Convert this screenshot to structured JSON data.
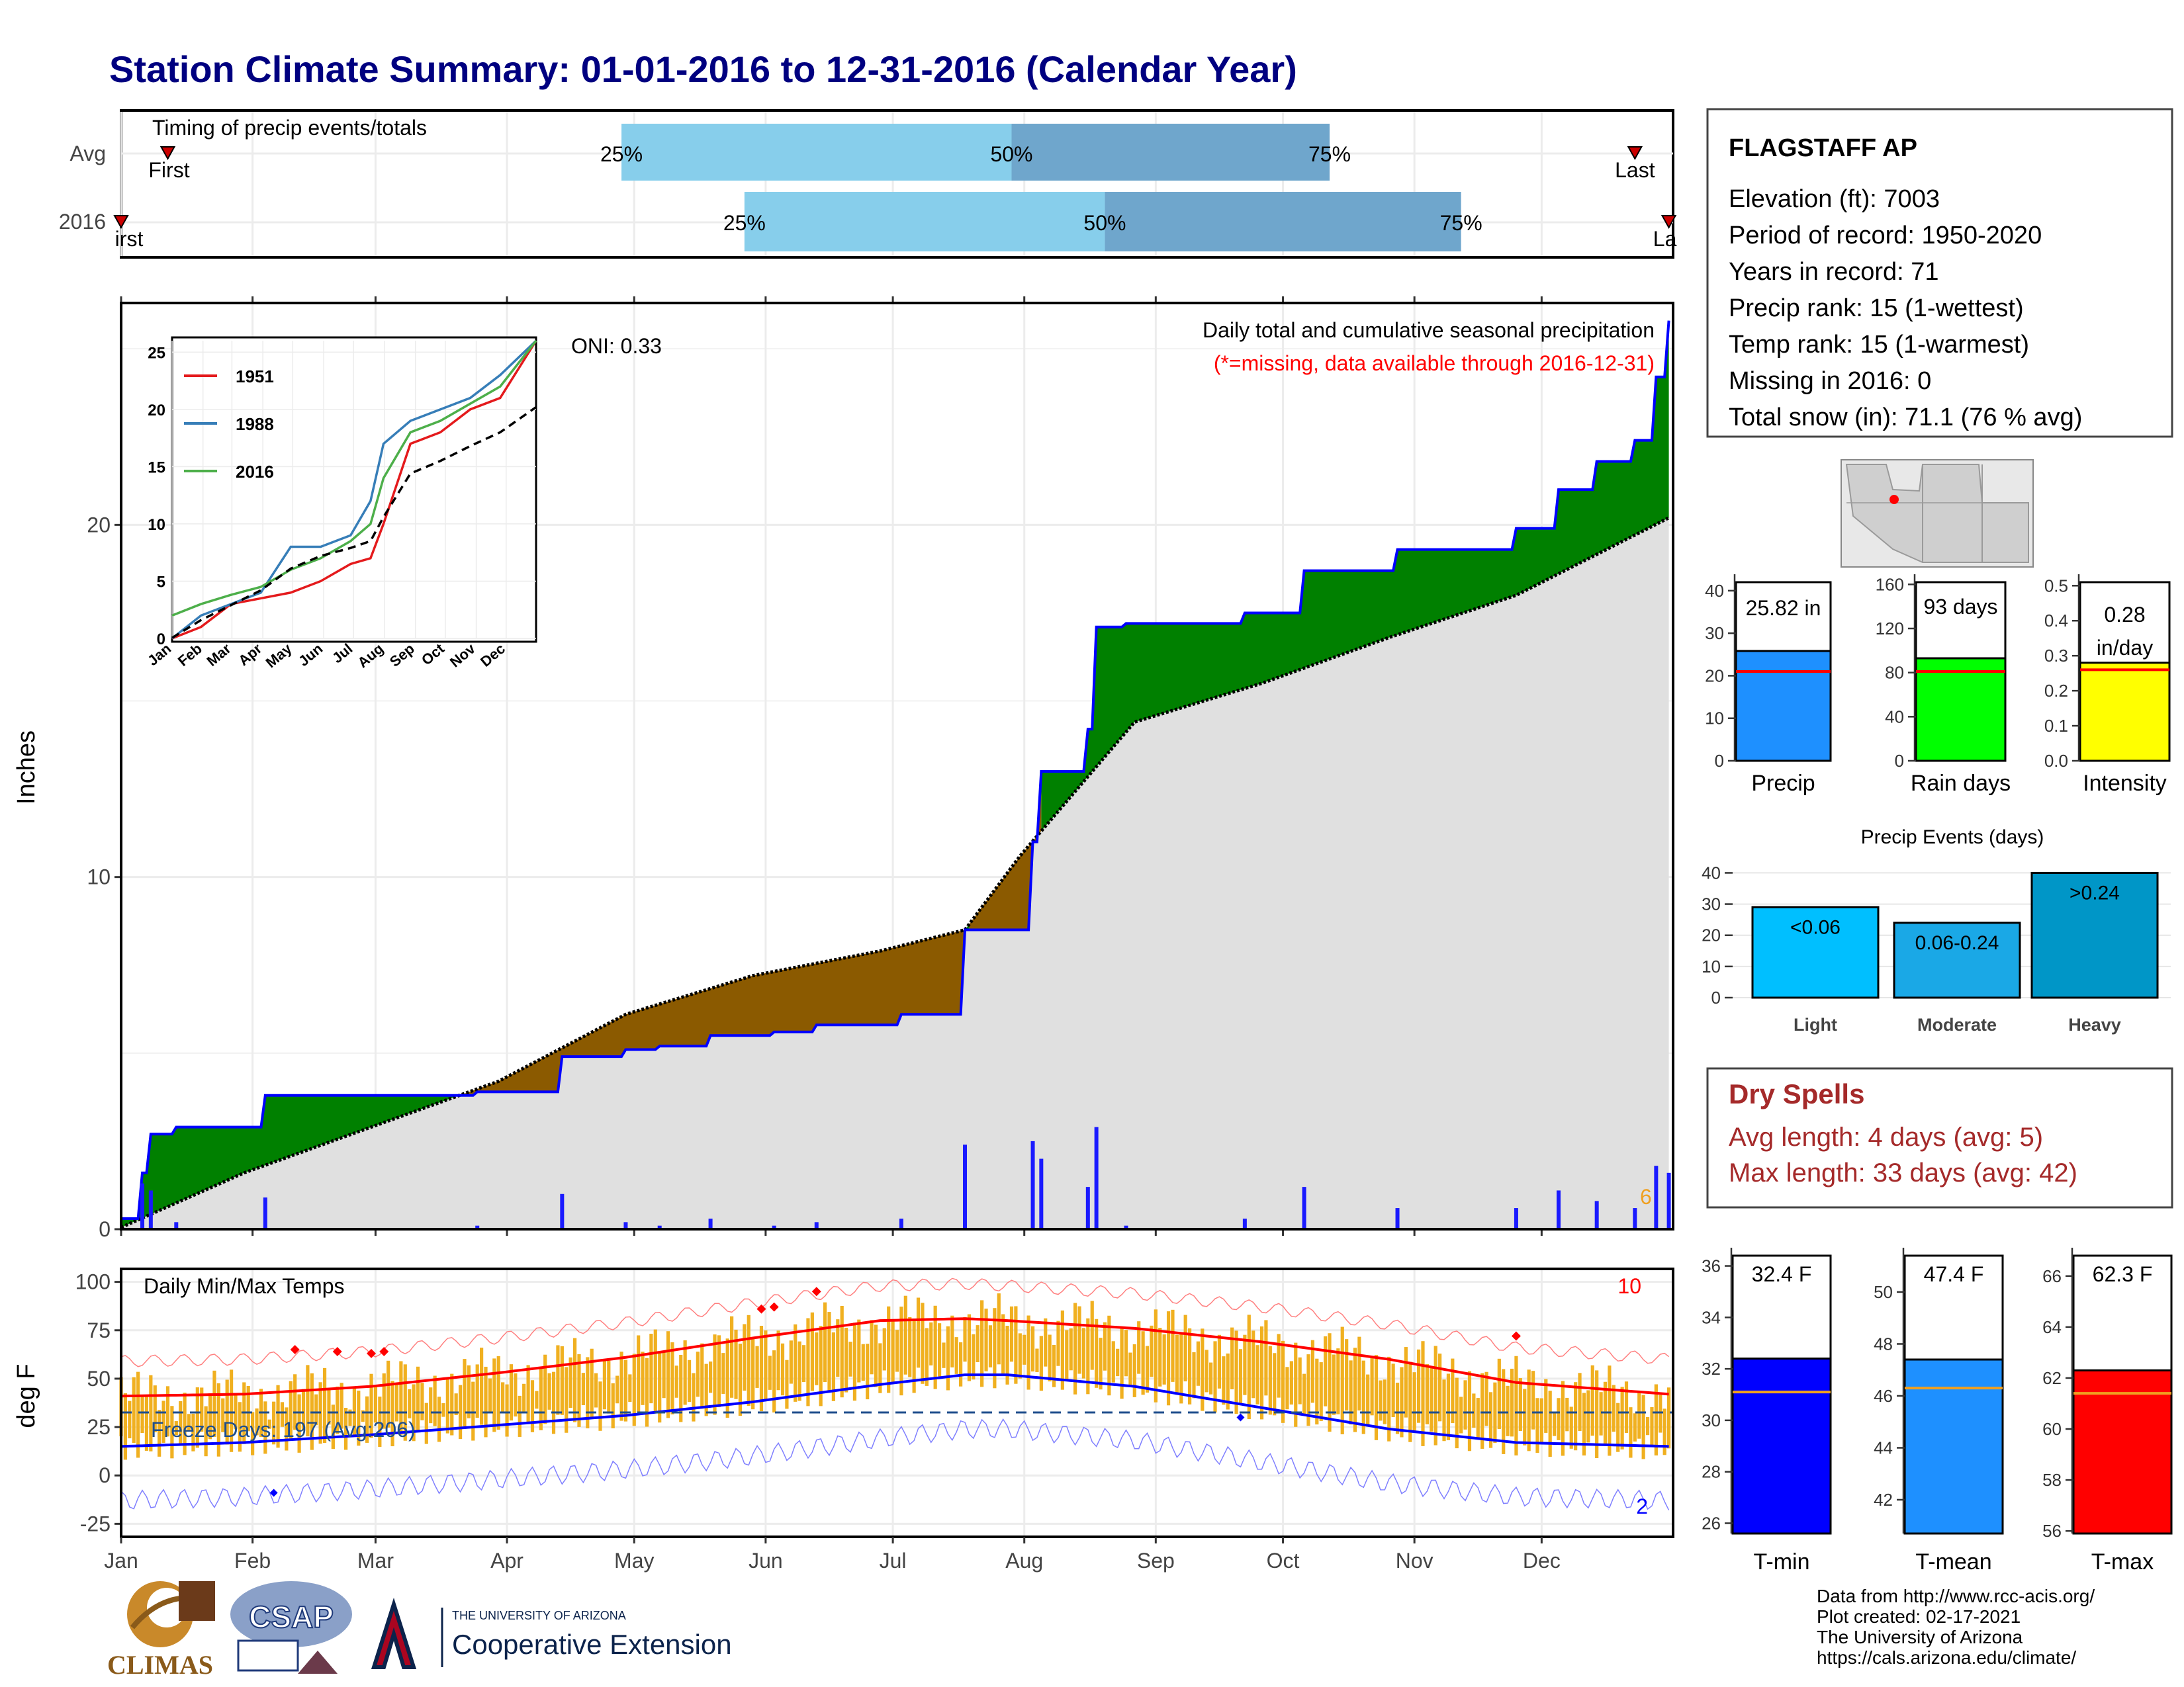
{
  "title": "Station Climate Summary: 01-01-2016 to 12-31-2016 (Calendar Year)",
  "colors": {
    "title": "#000080",
    "avg_line": "#ff0000",
    "brown": "#8B5A00",
    "green": "#008000",
    "blue": "#0000ff",
    "light_blue": "#87ceeb",
    "steel": "#6fa6cc",
    "gray_fill": "#e0e0e0",
    "orange": "#f0b020",
    "dry_spell": "#a52a2a"
  },
  "months": [
    "Jan",
    "Feb",
    "Mar",
    "Apr",
    "May",
    "Jun",
    "Jul",
    "Aug",
    "Sep",
    "Oct",
    "Nov",
    "Dec"
  ],
  "timing": {
    "label": "Timing of precip events/totals",
    "rows": [
      "Avg",
      "2016"
    ],
    "first_label": "First",
    "last_label": "Last",
    "first_label_2016": "irst",
    "last_label_2016": "La",
    "p25": "25%",
    "p50": "50%",
    "p75": "75%",
    "avg_days": {
      "first": 12,
      "p25": 119,
      "p50": 211,
      "p75": 286,
      "last": 358
    },
    "y2016_days": {
      "first": 1,
      "p25": 148,
      "p50": 233,
      "p75": 317,
      "last": 366
    }
  },
  "station": {
    "name": "FLAGSTAFF AP",
    "lines": [
      "Elevation (ft): 7003",
      "Period of record: 1950-2020",
      "Years in record: 71",
      "Precip rank: 15 (1-wettest)",
      "Temp rank: 15 (1-warmest)",
      "Missing in 2016: 0",
      "Total snow (in): 71.1 (76 % avg)"
    ]
  },
  "precip_panel": {
    "ylabel": "Inches",
    "title": "Daily total and cumulative seasonal precipitation",
    "subtitle": "(*=missing, data available through 2016-12-31)",
    "oni": "ONI: 0.33",
    "extreme_count": "6",
    "yticks": [
      "0",
      "10",
      "20"
    ]
  },
  "inset": {
    "yticks": [
      "0",
      "5",
      "10",
      "15",
      "20",
      "25"
    ],
    "legend": [
      "1951",
      "1988",
      "2016"
    ],
    "legend_colors": [
      "#e41a1c",
      "#377eb8",
      "#4daf4a"
    ]
  },
  "temp_panel": {
    "ylabel": "deg F",
    "title": "Daily Min/Max Temps",
    "freeze": "Freeze Days: 197 (Avg:206)",
    "hot_count": "10",
    "cold_count": "2",
    "yticks": [
      "-25",
      "0",
      "25",
      "50",
      "75",
      "100"
    ]
  },
  "bars": {
    "precip": {
      "label": "25.82 in",
      "name": "Precip",
      "yticks": [
        "0",
        "10",
        "20",
        "30",
        "40"
      ]
    },
    "rain": {
      "label": "93 days",
      "name": "Rain days",
      "yticks": [
        "0",
        "40",
        "80",
        "120",
        "160"
      ]
    },
    "intensity": {
      "label1": "0.28",
      "label2": "in/day",
      "name": "Intensity",
      "yticks": [
        "0.0",
        "0.1",
        "0.2",
        "0.3",
        "0.4",
        "0.5"
      ]
    }
  },
  "events": {
    "title": "Precip Events (days)",
    "yticks": [
      "0",
      "10",
      "20",
      "30",
      "40"
    ],
    "cats": [
      "Light",
      "Moderate",
      "Heavy"
    ],
    "labels": [
      "<0.06",
      "0.06-0.24",
      ">0.24"
    ]
  },
  "dry": {
    "title": "Dry Spells",
    "avg": "Avg length: 4 days (avg: 5)",
    "max": "Max length: 33 days (avg: 42)"
  },
  "temps": {
    "tmin": {
      "label": "32.4 F",
      "name": "T-min",
      "yticks": [
        "26",
        "28",
        "30",
        "32",
        "34",
        "36"
      ]
    },
    "tmean": {
      "label": "47.4 F",
      "name": "T-mean",
      "yticks": [
        "42",
        "44",
        "46",
        "48",
        "50"
      ]
    },
    "tmax": {
      "label": "62.3 F",
      "name": "T-max",
      "yticks": [
        "56",
        "58",
        "60",
        "62",
        "64",
        "66"
      ]
    }
  },
  "footer": [
    "Data from http://www.rcc-acis.org/",
    "Plot created: 02-17-2021",
    "The University of Arizona",
    "https://cals.arizona.edu/climate/"
  ],
  "logos": {
    "climas": "CLIMAS",
    "csap": "CSAP",
    "ua_small": "THE UNIVERSITY OF ARIZONA",
    "ua_big": "Cooperative Extension"
  },
  "chart_data": [
    {
      "type": "area",
      "title": "Daily total and cumulative seasonal precipitation",
      "ylabel": "Inches",
      "ylim": [
        0,
        26.3
      ],
      "x_unit": "day of year 2016",
      "series": [
        {
          "name": "2016",
          "x": [
            1,
            6,
            8,
            14,
            30,
            35,
            58,
            70,
            85,
            105,
            120,
            128,
            140,
            155,
            165,
            185,
            200,
            213,
            216,
            218,
            229,
            231,
            238,
            266,
            280,
            302,
            330,
            340,
            349,
            358,
            363,
            366
          ],
          "values": [
            0.3,
            1.6,
            2.7,
            2.9,
            2.9,
            3.8,
            3.8,
            3.8,
            3.9,
            4.9,
            5.1,
            5.2,
            5.5,
            5.6,
            5.8,
            6.1,
            8.5,
            8.5,
            11.0,
            13.0,
            14.2,
            17.1,
            17.2,
            17.5,
            18.7,
            19.3,
            19.9,
            21.0,
            21.8,
            22.4,
            24.2,
            25.8
          ]
        },
        {
          "x": [
            1,
            30,
            60,
            90,
            120,
            150,
            180,
            200,
            213,
            240,
            270,
            300,
            330,
            366
          ],
          "values": [
            0.05,
            1.6,
            2.9,
            4.2,
            6.1,
            7.2,
            7.9,
            8.5,
            10.6,
            14.4,
            15.5,
            16.8,
            18.0,
            20.2
          ]
        }
      ],
      "extremes_count": 6
    },
    {
      "type": "line",
      "title": "Daily Min/Max Temps",
      "ylabel": "deg F",
      "ylim": [
        -30,
        105
      ],
      "freeze_days": 197,
      "freeze_days_avg": 206,
      "series": [
        {
          "x": [
            1,
            30,
            60,
            90,
            120,
            150,
            180,
            200,
            210,
            240,
            270,
            300,
            330,
            366
          ],
          "values": [
            41,
            42,
            46,
            53,
            61,
            71,
            80,
            81,
            80,
            76,
            69,
            60,
            48,
            42
          ]
        },
        {
          "x": [
            1,
            30,
            60,
            90,
            120,
            150,
            180,
            200,
            210,
            240,
            270,
            300,
            330,
            366
          ],
          "values": [
            15,
            17,
            21,
            26,
            31,
            38,
            47,
            52,
            52,
            46,
            35,
            24,
            17,
            15
          ]
        }
      ],
      "record_highs": 10,
      "record_lows": 2
    },
    {
      "type": "bar",
      "categories": [
        "Precip",
        "Rain days",
        "Intensity"
      ],
      "values": [
        25.82,
        93,
        0.28
      ],
      "averages": [
        21.0,
        81,
        0.26
      ]
    },
    {
      "type": "bar",
      "title": "Precip Events (days)",
      "categories": [
        "Light",
        "Moderate",
        "Heavy"
      ],
      "values": [
        29,
        24,
        40
      ],
      "ylim": [
        0,
        42
      ]
    },
    {
      "type": "bar",
      "categories": [
        "T-min",
        "T-mean",
        "T-max"
      ],
      "values": [
        32.4,
        47.4,
        62.3
      ],
      "averages": [
        31.1,
        46.3,
        61.4
      ]
    },
    {
      "type": "line",
      "xlim_labels": [
        "Jan",
        "Feb",
        "Mar",
        "Apr",
        "May",
        "Jun",
        "Jul",
        "Aug",
        "Sep",
        "Oct",
        "Nov",
        "Dec"
      ],
      "ylim": [
        0,
        26
      ],
      "series": [
        {
          "name": "1951",
          "x": [
            1,
            30,
            60,
            90,
            120,
            150,
            180,
            200,
            213,
            240,
            270,
            300,
            330,
            366
          ],
          "values": [
            0,
            1,
            3,
            3.5,
            4,
            5,
            6.5,
            7,
            10,
            17,
            18,
            20,
            21,
            26
          ]
        },
        {
          "name": "1988",
          "x": [
            1,
            30,
            60,
            90,
            120,
            150,
            180,
            200,
            213,
            240,
            270,
            300,
            330,
            366
          ],
          "values": [
            0,
            2,
            3,
            4,
            8,
            8,
            9,
            12,
            17,
            19,
            20,
            21,
            23,
            26
          ]
        },
        {
          "name": "2016",
          "x": [
            1,
            30,
            60,
            90,
            120,
            150,
            180,
            200,
            213,
            240,
            270,
            300,
            330,
            366
          ],
          "values": [
            2,
            3,
            3.8,
            4.5,
            6,
            7,
            8.5,
            10,
            14,
            18,
            19,
            20.5,
            22,
            26
          ]
        }
      ]
    }
  ]
}
